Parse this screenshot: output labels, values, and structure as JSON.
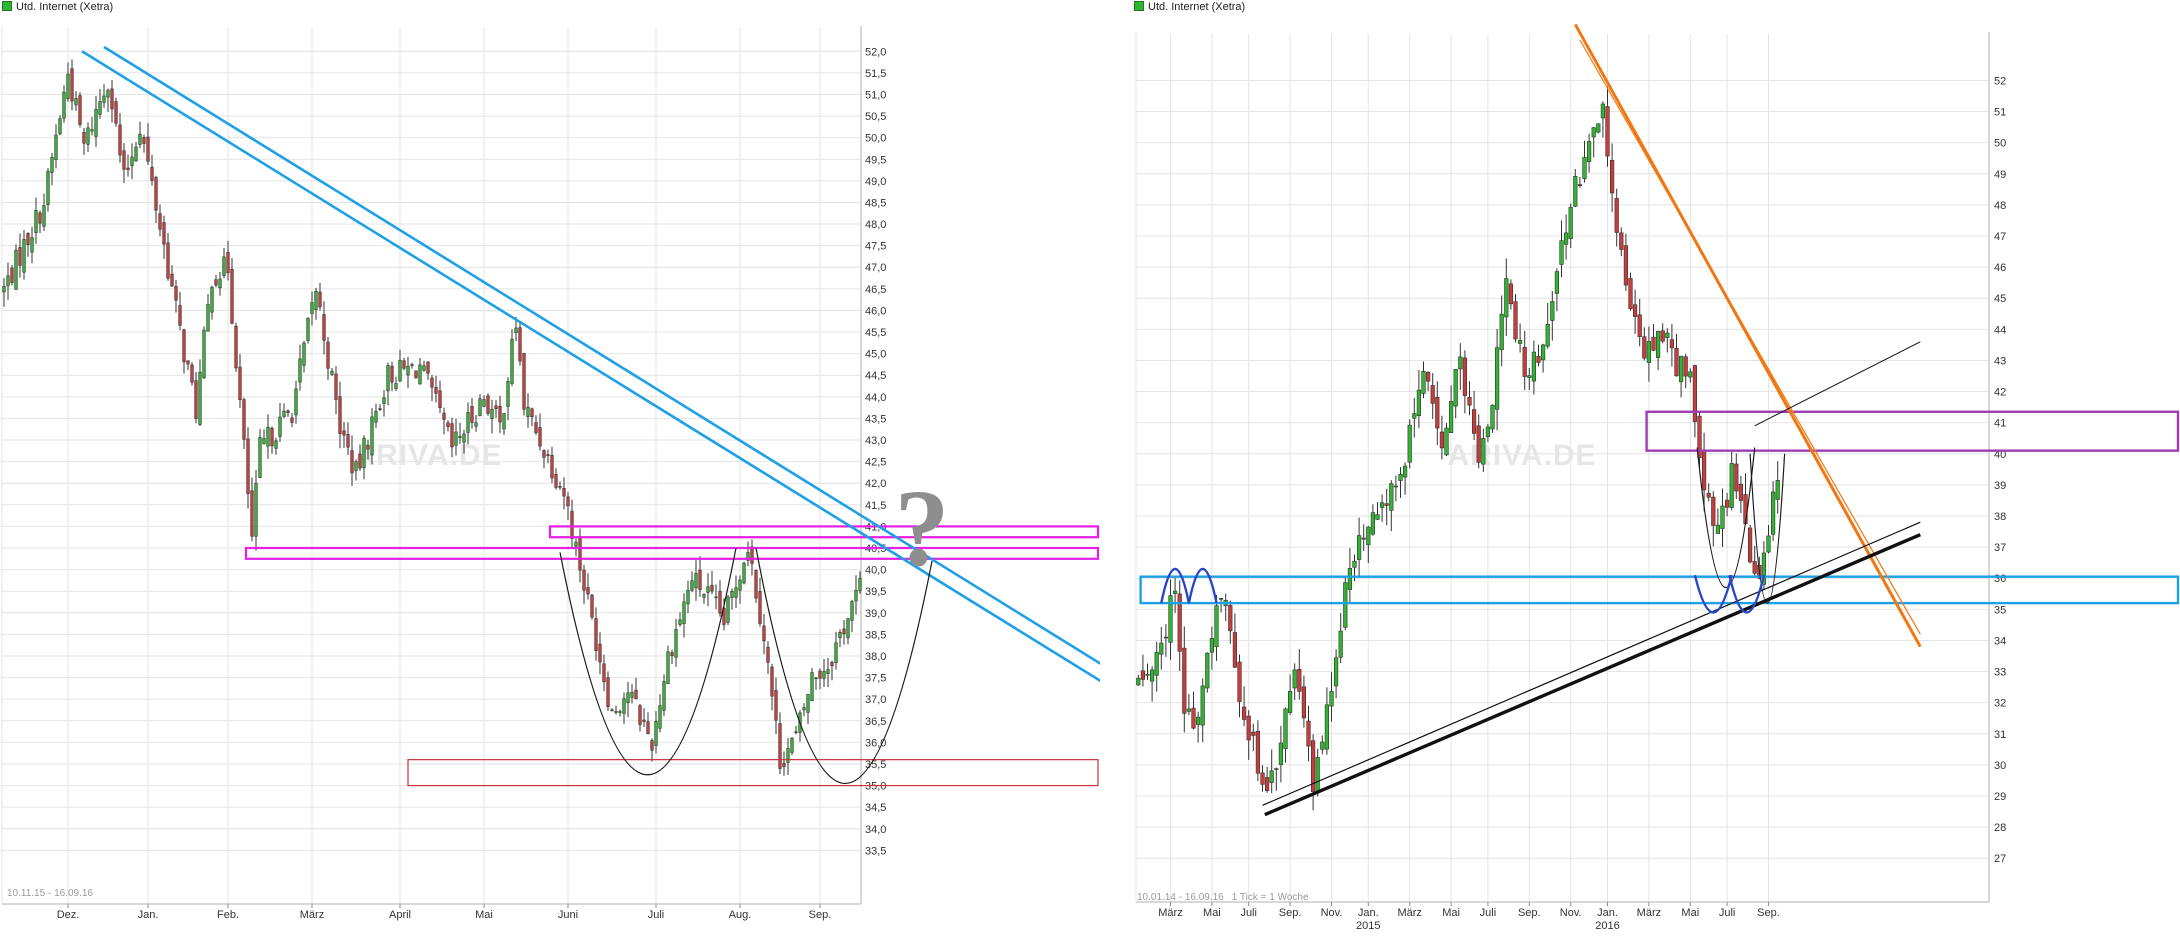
{
  "page": {
    "left_title": "Utd. Internet (Xetra)",
    "right_title": "Utd. Internet (Xetra)",
    "colors": {
      "up": "#2fb52f",
      "down": "#c83c3c",
      "blue_line": "#1ea0e6",
      "magenta_zone": "#e61ee6",
      "support_zone": "#c8323c",
      "purple_zone": "#a03cb4",
      "orange_line": "#f07814",
      "watermark": "#e6e6e6"
    }
  },
  "chart_data": [
    {
      "type": "candlestick",
      "title": "Utd. Internet (Xetra)",
      "date_range_label": "10.11.15 - 16.09.16",
      "watermark": "ARIVA.DE",
      "annotation_text": "?",
      "ylim": [
        33.3,
        52.4
      ],
      "y_ticks": [
        "52,0",
        "51,5",
        "51,0",
        "50,5",
        "50,0",
        "49,5",
        "49,0",
        "48,5",
        "48,0",
        "47,5",
        "47,0",
        "46,5",
        "46,0",
        "45,5",
        "45,0",
        "44,5",
        "44,0",
        "43,5",
        "43,0",
        "42,5",
        "42,0",
        "41,5",
        "41,0",
        "40,5",
        "40,0",
        "39,5",
        "39,0",
        "38,5",
        "38,0",
        "37,5",
        "37,0",
        "36,5",
        "36,0",
        "35,5",
        "35,0",
        "34,5",
        "34,0",
        "33,5"
      ],
      "y_tick_values": [
        52,
        51.5,
        51,
        50.5,
        50,
        49.5,
        49,
        48.5,
        48,
        47.5,
        47,
        46.5,
        46,
        45.5,
        45,
        44.5,
        44,
        43.5,
        43,
        42.5,
        42,
        41.5,
        41,
        40.5,
        40,
        39.5,
        39,
        38.5,
        38,
        37.5,
        37,
        36.5,
        36,
        35.5,
        35,
        34.5,
        34,
        33.5
      ],
      "x_labels": [
        "Dez.",
        "Jan.",
        "Feb.",
        "März",
        "April",
        "Mai",
        "Juni",
        "Juli",
        "Aug.",
        "Sep."
      ],
      "x_label_index": [
        16,
        36,
        56,
        77,
        99,
        120,
        141,
        163,
        184,
        204
      ],
      "n_bars": 215,
      "price_path": [
        [
          0,
          46.5
        ],
        [
          10,
          48.5
        ],
        [
          16,
          51.5
        ],
        [
          20,
          49.8
        ],
        [
          26,
          51.4
        ],
        [
          30,
          49.0
        ],
        [
          34,
          50.3
        ],
        [
          40,
          47.5
        ],
        [
          44,
          45.5
        ],
        [
          48,
          43.7
        ],
        [
          52,
          46.8
        ],
        [
          56,
          47.0
        ],
        [
          62,
          40.7
        ],
        [
          64,
          42.8
        ],
        [
          72,
          43.7
        ],
        [
          78,
          46.5
        ],
        [
          84,
          43.3
        ],
        [
          88,
          42.2
        ],
        [
          96,
          44.5
        ],
        [
          104,
          44.7
        ],
        [
          108,
          43.8
        ],
        [
          112,
          42.8
        ],
        [
          120,
          44.0
        ],
        [
          124,
          43.3
        ],
        [
          128,
          45.7
        ],
        [
          130,
          43.8
        ],
        [
          140,
          41.8
        ],
        [
          148,
          38.4
        ],
        [
          152,
          36.7
        ],
        [
          156,
          37.2
        ],
        [
          162,
          36.0
        ],
        [
          166,
          38.0
        ],
        [
          172,
          39.8
        ],
        [
          176,
          39.4
        ],
        [
          180,
          38.8
        ],
        [
          186,
          40.6
        ],
        [
          190,
          38.5
        ],
        [
          194,
          35.6
        ],
        [
          198,
          36.1
        ],
        [
          202,
          37.5
        ],
        [
          206,
          37.8
        ],
        [
          214,
          39.6
        ]
      ],
      "overlays": {
        "blue_lines": [
          {
            "x1": 19.5,
            "y1": 52.0,
            "x2": 278,
            "y2": 37.2
          },
          {
            "x1": 25,
            "y1": 52.1,
            "x2": 278,
            "y2": 37.6
          }
        ],
        "magenta_zones": [
          {
            "x1": 136.5,
            "x2": 278,
            "top": 41.0,
            "bottom": 40.75
          },
          {
            "x1": 60.5,
            "x2": 278,
            "top": 40.5,
            "bottom": 40.25
          }
        ],
        "support_zone": {
          "x1": 101,
          "x2": 278,
          "top": 35.6,
          "bottom": 35.0
        },
        "arcs": [
          {
            "x1": 139,
            "y1": 40.4,
            "x2": 183,
            "y2": 40.5,
            "bottom": 35.25
          },
          {
            "x1": 188,
            "y1": 40.5,
            "x2": 232,
            "y2": 40.2,
            "bottom": 35.05
          }
        ]
      }
    },
    {
      "type": "candlestick",
      "title": "Utd. Internet (Xetra)",
      "date_range_label": "10.01.14 - 16.09.16",
      "tick_label": "1 Tick = 1 Woche",
      "watermark": "ARIVA.DE",
      "ylim": [
        26.3,
        53.3
      ],
      "y_ticks": [
        "52",
        "51",
        "50",
        "49",
        "48",
        "47",
        "46",
        "45",
        "44",
        "43",
        "42",
        "41",
        "40",
        "39",
        "38",
        "37",
        "36",
        "35",
        "34",
        "33",
        "32",
        "31",
        "30",
        "29",
        "28",
        "27"
      ],
      "y_tick_values": [
        52,
        51,
        50,
        49,
        48,
        47,
        46,
        45,
        44,
        43,
        42,
        41,
        40,
        39,
        38,
        37,
        36,
        35,
        34,
        33,
        32,
        31,
        30,
        29,
        28,
        27
      ],
      "x_labels": [
        "März",
        "Mai",
        "Juli",
        "Sep.",
        "Nov.",
        "Jan.",
        "März",
        "Mai",
        "Juli",
        "Sep.",
        "Nov.",
        "Jan.",
        "März",
        "Mai",
        "Juli",
        "Sep."
      ],
      "x_label_index": [
        7,
        16,
        24,
        33,
        42,
        50,
        59,
        68,
        76,
        85,
        94,
        102,
        111,
        120,
        128,
        137
      ],
      "year_labels": [
        {
          "text": "2015",
          "index": 50
        },
        {
          "text": "2016",
          "index": 102
        }
      ],
      "n_bars": 140,
      "price_path": [
        [
          0,
          32.5
        ],
        [
          5,
          34.0
        ],
        [
          8,
          35.5
        ],
        [
          10,
          32.0
        ],
        [
          12,
          30.8
        ],
        [
          16,
          34.0
        ],
        [
          18,
          35.8
        ],
        [
          20,
          34.0
        ],
        [
          22,
          32.0
        ],
        [
          26,
          30.0
        ],
        [
          28,
          29.0
        ],
        [
          32,
          31.5
        ],
        [
          34,
          33.5
        ],
        [
          38,
          29.5
        ],
        [
          42,
          32.5
        ],
        [
          44,
          34.5
        ],
        [
          46,
          36.5
        ],
        [
          50,
          38.0
        ],
        [
          54,
          38.5
        ],
        [
          58,
          40.0
        ],
        [
          62,
          42.5
        ],
        [
          66,
          40.5
        ],
        [
          70,
          43.0
        ],
        [
          74,
          40.0
        ],
        [
          77,
          41.8
        ],
        [
          80,
          45.5
        ],
        [
          84,
          42.5
        ],
        [
          88,
          43.5
        ],
        [
          92,
          47.0
        ],
        [
          95,
          48.5
        ],
        [
          98,
          50.0
        ],
        [
          101,
          50.8
        ],
        [
          103,
          48.0
        ],
        [
          106,
          45.5
        ],
        [
          110,
          43.5
        ],
        [
          114,
          44.0
        ],
        [
          116,
          43.0
        ],
        [
          120,
          42.5
        ],
        [
          122,
          40.0
        ],
        [
          125,
          37.5
        ],
        [
          127,
          38.0
        ],
        [
          129,
          39.3
        ],
        [
          131,
          38.5
        ],
        [
          133,
          36.5
        ],
        [
          135,
          36.2
        ],
        [
          137,
          37.5
        ],
        [
          139,
          39.3
        ]
      ],
      "overlays": {
        "blue_zone": {
          "x1": 0.5,
          "x2": 170,
          "top": 36.05,
          "bottom": 35.2
        },
        "purple_zone": {
          "x1": 110.5,
          "x2": 170,
          "top": 41.35,
          "bottom": 40.1
        },
        "orange_lines": [
          {
            "x1": 95,
            "y1": 53.8,
            "x2": 170,
            "y2": 33.8
          },
          {
            "x1": 96,
            "y1": 53.3,
            "x2": 170,
            "y2": 34.2
          }
        ],
        "black_lines": [
          {
            "x1": 27.5,
            "y1": 28.4,
            "x2": 170,
            "y2": 37.4,
            "w": 3.4
          },
          {
            "x1": 27,
            "y1": 28.7,
            "x2": 170,
            "y2": 37.8,
            "w": 1.2
          },
          {
            "x1": 134,
            "y1": 40.9,
            "x2": 170,
            "y2": 43.6,
            "w": 1
          }
        ],
        "dark_arcs": [
          {
            "x1": 121.5,
            "y1": 40.2,
            "x2": 134,
            "y2": 40.2,
            "bottom": 35.7
          },
          {
            "x1": 133,
            "y1": 40.0,
            "x2": 140.5,
            "y2": 40.0,
            "bottom": 35.2
          }
        ],
        "blue_arcs": [
          {
            "x1": 5,
            "x2": 11,
            "base": 35.2,
            "top": 36.3
          },
          {
            "x1": 11,
            "x2": 17,
            "base": 35.2,
            "top": 36.3
          },
          {
            "x1": 121,
            "x2": 129,
            "base": 36.1,
            "top": 34.9
          },
          {
            "x1": 128.5,
            "x2": 136,
            "base": 36.1,
            "top": 34.9
          }
        ]
      }
    }
  ]
}
